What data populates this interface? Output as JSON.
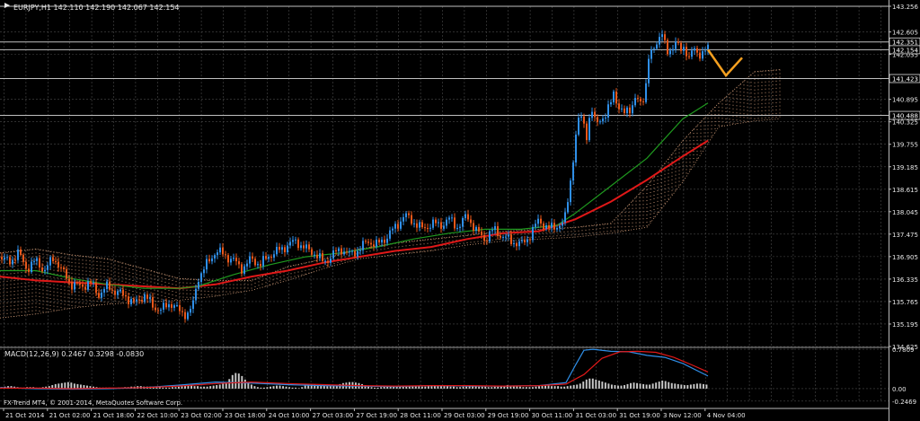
{
  "window": {
    "symbol_info": "EURJPY,H1  142.110 142.190 142.067 142.154"
  },
  "macd_info": "MACD(12,26,9) 0.2467 0.3298 -0.0830",
  "copyright": "FX-Trend MT4, © 2001-2014, MetaQuotes Software Corp.",
  "colors": {
    "background": "#000000",
    "grid": "#4a4a4a",
    "bull": "#2f8fe8",
    "bear": "#e8571a",
    "ma_fast": "#1f9a1f",
    "ma_slow": "#e01818",
    "cloud": "#d9a27d",
    "forecast": "#f5a020",
    "macd_hist": "#c8c8c8",
    "macd_line": "#2f8fe8",
    "signal_line": "#e01818",
    "hline": "#c0c0c0"
  },
  "chart_data": [
    {
      "type": "candlestick",
      "ylim": [
        134.625,
        143.256
      ],
      "y_ticks": [
        143.256,
        142.605,
        142.035,
        141.423,
        140.895,
        140.325,
        139.755,
        139.185,
        138.615,
        138.045,
        137.475,
        136.905,
        136.335,
        135.765,
        135.195,
        134.625
      ],
      "price_labels": [
        "142.351",
        "142.154",
        "141.423",
        "140.488"
      ],
      "x_labels": [
        "21 Oct 2014",
        "21 Oct 02:00",
        "21 Oct 18:00",
        "22 Oct 10:00",
        "23 Oct 02:00",
        "23 Oct 18:00",
        "24 Oct 10:00",
        "27 Oct 03:00",
        "27 Oct 19:00",
        "28 Oct 11:00",
        "29 Oct 03:00",
        "29 Oct 19:00",
        "30 Oct 11:00",
        "31 Oct 03:00",
        "31 Oct 19:00",
        "3 Nov 12:00",
        "4 Nov 04:00"
      ],
      "horizontal_lines": [
        143.256,
        142.351,
        142.154,
        141.423,
        140.488
      ],
      "close_path": [
        [
          0,
          136.9
        ],
        [
          10,
          136.75
        ],
        [
          20,
          137.0
        ],
        [
          30,
          136.6
        ],
        [
          40,
          136.8
        ],
        [
          50,
          136.55
        ],
        [
          60,
          136.9
        ],
        [
          70,
          136.5
        ],
        [
          80,
          136.2
        ],
        [
          90,
          136.15
        ],
        [
          100,
          136.25
        ],
        [
          110,
          135.95
        ],
        [
          120,
          136.15
        ],
        [
          130,
          136.0
        ],
        [
          140,
          135.9
        ],
        [
          150,
          135.7
        ],
        [
          160,
          135.95
        ],
        [
          170,
          135.65
        ],
        [
          180,
          135.55
        ],
        [
          190,
          135.75
        ],
        [
          200,
          135.5
        ],
        [
          210,
          135.45
        ],
        [
          215,
          135.7
        ],
        [
          220,
          136.35
        ],
        [
          230,
          136.7
        ],
        [
          240,
          137.05
        ],
        [
          250,
          136.95
        ],
        [
          260,
          136.8
        ],
        [
          270,
          136.6
        ],
        [
          280,
          136.85
        ],
        [
          290,
          136.7
        ],
        [
          300,
          136.95
        ],
        [
          310,
          137.05
        ],
        [
          320,
          137.2
        ],
        [
          330,
          137.3
        ],
        [
          340,
          137.1
        ],
        [
          350,
          137.0
        ],
        [
          360,
          136.75
        ],
        [
          370,
          136.95
        ],
        [
          380,
          137.1
        ],
        [
          390,
          136.95
        ],
        [
          400,
          137.1
        ],
        [
          410,
          137.3
        ],
        [
          420,
          137.2
        ],
        [
          430,
          137.4
        ],
        [
          440,
          137.65
        ],
        [
          450,
          137.95
        ],
        [
          460,
          137.8
        ],
        [
          470,
          137.6
        ],
        [
          480,
          137.75
        ],
        [
          490,
          137.7
        ],
        [
          500,
          137.85
        ],
        [
          510,
          137.65
        ],
        [
          520,
          137.95
        ],
        [
          530,
          137.55
        ],
        [
          540,
          137.35
        ],
        [
          550,
          137.6
        ],
        [
          560,
          137.4
        ],
        [
          570,
          137.3
        ],
        [
          580,
          137.2
        ],
        [
          590,
          137.45
        ],
        [
          600,
          137.85
        ],
        [
          610,
          137.6
        ],
        [
          620,
          137.7
        ],
        [
          628,
          137.75
        ],
        [
          633,
          138.5
        ],
        [
          638,
          139.4
        ],
        [
          643,
          140.3
        ],
        [
          648,
          140.5
        ],
        [
          653,
          140.0
        ],
        [
          658,
          140.6
        ],
        [
          663,
          140.3
        ],
        [
          668,
          140.45
        ],
        [
          673,
          140.35
        ],
        [
          678,
          140.7
        ],
        [
          683,
          141.15
        ],
        [
          688,
          140.65
        ],
        [
          693,
          140.5
        ],
        [
          698,
          140.7
        ],
        [
          703,
          140.65
        ],
        [
          708,
          140.9
        ],
        [
          713,
          140.85
        ],
        [
          718,
          141.05
        ],
        [
          722,
          141.9
        ],
        [
          727,
          142.15
        ],
        [
          732,
          142.45
        ],
        [
          737,
          142.55
        ],
        [
          742,
          142.05
        ],
        [
          747,
          142.2
        ],
        [
          752,
          142.35
        ],
        [
          757,
          142.1
        ],
        [
          762,
          142.25
        ],
        [
          767,
          141.95
        ],
        [
          772,
          142.15
        ],
        [
          777,
          142.05
        ],
        [
          782,
          142.1
        ],
        [
          788,
          142.154
        ]
      ],
      "ma_fast": [
        [
          0,
          136.55
        ],
        [
          40,
          136.55
        ],
        [
          80,
          136.35
        ],
        [
          120,
          136.2
        ],
        [
          160,
          136.1
        ],
        [
          200,
          136.1
        ],
        [
          220,
          136.15
        ],
        [
          260,
          136.45
        ],
        [
          300,
          136.7
        ],
        [
          340,
          136.9
        ],
        [
          380,
          137.0
        ],
        [
          420,
          137.15
        ],
        [
          460,
          137.35
        ],
        [
          500,
          137.5
        ],
        [
          540,
          137.6
        ],
        [
          580,
          137.6
        ],
        [
          620,
          137.7
        ],
        [
          640,
          138.0
        ],
        [
          680,
          138.7
        ],
        [
          720,
          139.4
        ],
        [
          760,
          140.4
        ],
        [
          788,
          140.8
        ]
      ],
      "ma_slow": [
        [
          0,
          136.4
        ],
        [
          40,
          136.3
        ],
        [
          80,
          136.25
        ],
        [
          120,
          136.2
        ],
        [
          160,
          136.15
        ],
        [
          200,
          136.1
        ],
        [
          240,
          136.2
        ],
        [
          280,
          136.4
        ],
        [
          320,
          136.55
        ],
        [
          360,
          136.75
        ],
        [
          400,
          136.9
        ],
        [
          440,
          137.05
        ],
        [
          480,
          137.15
        ],
        [
          520,
          137.35
        ],
        [
          560,
          137.5
        ],
        [
          600,
          137.55
        ],
        [
          640,
          137.85
        ],
        [
          680,
          138.3
        ],
        [
          720,
          138.85
        ],
        [
          760,
          139.45
        ],
        [
          788,
          139.85
        ]
      ],
      "cloud_upper": [
        [
          0,
          137.0
        ],
        [
          40,
          137.1
        ],
        [
          80,
          136.95
        ],
        [
          120,
          136.85
        ],
        [
          160,
          136.6
        ],
        [
          200,
          136.35
        ],
        [
          240,
          136.3
        ],
        [
          280,
          136.3
        ],
        [
          320,
          136.65
        ],
        [
          360,
          136.85
        ],
        [
          400,
          137.1
        ],
        [
          440,
          137.25
        ],
        [
          480,
          137.35
        ],
        [
          520,
          137.45
        ],
        [
          560,
          137.55
        ],
        [
          600,
          137.6
        ],
        [
          640,
          137.65
        ],
        [
          680,
          137.75
        ],
        [
          720,
          138.7
        ],
        [
          760,
          139.85
        ],
        [
          800,
          140.8
        ],
        [
          840,
          141.6
        ],
        [
          868,
          141.65
        ]
      ],
      "cloud_lower": [
        [
          0,
          135.35
        ],
        [
          40,
          135.45
        ],
        [
          80,
          135.6
        ],
        [
          120,
          135.7
        ],
        [
          160,
          135.75
        ],
        [
          200,
          135.8
        ],
        [
          240,
          135.9
        ],
        [
          280,
          136.05
        ],
        [
          320,
          136.3
        ],
        [
          360,
          136.6
        ],
        [
          400,
          136.85
        ],
        [
          440,
          136.95
        ],
        [
          480,
          137.05
        ],
        [
          520,
          137.2
        ],
        [
          560,
          137.3
        ],
        [
          600,
          137.35
        ],
        [
          640,
          137.4
        ],
        [
          680,
          137.5
        ],
        [
          720,
          137.65
        ],
        [
          760,
          138.8
        ],
        [
          800,
          140.2
        ],
        [
          840,
          140.35
        ],
        [
          868,
          140.4
        ]
      ],
      "forecast_path": [
        [
          788,
          142.154
        ],
        [
          808,
          141.5
        ],
        [
          826,
          141.95
        ]
      ]
    },
    {
      "type": "macd",
      "title": "MACD(12,26,9) 0.2467 0.3298 -0.0830",
      "ylim": [
        -0.25,
        0.8
      ],
      "y_ticks": [
        0.7809,
        0.0,
        -0.2469
      ],
      "histogram": [
        0.03,
        0.04,
        0.05,
        0.05,
        0.04,
        0.03,
        0.02,
        0.02,
        0.03,
        0.03,
        0.03,
        0.02,
        0.02,
        0.03,
        0.04,
        0.05,
        0.07,
        0.09,
        0.1,
        0.11,
        0.12,
        0.13,
        0.12,
        0.1,
        0.09,
        0.08,
        0.07,
        0.06,
        0.05,
        0.04,
        0.03,
        0.02,
        0.02,
        0.02,
        0.02,
        0.01,
        0.01,
        0.02,
        0.02,
        0.03,
        0.03,
        0.04,
        0.04,
        0.05,
        0.05,
        0.04,
        0.04,
        0.04,
        0.04,
        0.03,
        0.03,
        0.02,
        0.02,
        0.02,
        0.03,
        0.03,
        0.04,
        0.05,
        0.06,
        0.06,
        0.06,
        0.05,
        0.05,
        0.04,
        0.04,
        0.04,
        0.05,
        0.06,
        0.07,
        0.08,
        0.1,
        0.13,
        0.19,
        0.27,
        0.31,
        0.3,
        0.25,
        0.18,
        0.12,
        0.08,
        0.05,
        0.03,
        0.02,
        0.02,
        0.03,
        0.04,
        0.05,
        0.06,
        0.06,
        0.05,
        0.04,
        0.03,
        0.02,
        0.02,
        0.01,
        0.03,
        0.06,
        0.08,
        0.09,
        0.08,
        0.07,
        0.06,
        0.06,
        0.05,
        0.05,
        0.06,
        0.07,
        0.09,
        0.11,
        0.12,
        0.13,
        0.13,
        0.12,
        0.11,
        0.09,
        0.07,
        0.05,
        0.03,
        0.02,
        0.02,
        0.03,
        0.04,
        0.05,
        0.06,
        0.06,
        0.05,
        0.05,
        0.05,
        0.06,
        0.06,
        0.05,
        0.05,
        0.05,
        0.04,
        0.04,
        0.05,
        0.05,
        0.06,
        0.06,
        0.06,
        0.05,
        0.05,
        0.04,
        0.04,
        0.03,
        0.03,
        0.04,
        0.04,
        0.05,
        0.05,
        0.05,
        0.04,
        0.04,
        0.04,
        0.03,
        0.03,
        0.04,
        0.04,
        0.05,
        0.06,
        0.07,
        0.06,
        0.06,
        0.05,
        0.04,
        0.03,
        0.03,
        0.03,
        0.03,
        0.04,
        0.05,
        0.06,
        0.06,
        0.06,
        0.05,
        0.05,
        0.05,
        0.04,
        0.04,
        0.05,
        0.06,
        0.07,
        0.08,
        0.1,
        0.14,
        0.18,
        0.2,
        0.2,
        0.18,
        0.16,
        0.14,
        0.12,
        0.1,
        0.08,
        0.07,
        0.06,
        0.06,
        0.07,
        0.09,
        0.11,
        0.12,
        0.11,
        0.1,
        0.09,
        0.08,
        0.08,
        0.1,
        0.12,
        0.14,
        0.16,
        0.15,
        0.13,
        0.11,
        0.1,
        0.09,
        0.08,
        0.07,
        0.07,
        0.08,
        0.09,
        0.1,
        0.1,
        0.09,
        0.08
      ],
      "macd_line": [
        [
          0,
          0.02
        ],
        [
          40,
          0.0
        ],
        [
          80,
          -0.01
        ],
        [
          120,
          0.0
        ],
        [
          160,
          0.02
        ],
        [
          200,
          0.07
        ],
        [
          240,
          0.13
        ],
        [
          280,
          0.11
        ],
        [
          320,
          0.08
        ],
        [
          360,
          0.06
        ],
        [
          400,
          0.05
        ],
        [
          440,
          0.04
        ],
        [
          480,
          0.06
        ],
        [
          520,
          0.05
        ],
        [
          560,
          0.05
        ],
        [
          600,
          0.06
        ],
        [
          630,
          0.12
        ],
        [
          640,
          0.45
        ],
        [
          650,
          0.76
        ],
        [
          660,
          0.78
        ],
        [
          680,
          0.74
        ],
        [
          700,
          0.73
        ],
        [
          720,
          0.66
        ],
        [
          740,
          0.62
        ],
        [
          760,
          0.5
        ],
        [
          788,
          0.25
        ]
      ],
      "signal_line": [
        [
          0,
          0.01
        ],
        [
          40,
          0.01
        ],
        [
          80,
          0.0
        ],
        [
          120,
          0.01
        ],
        [
          160,
          0.02
        ],
        [
          200,
          0.05
        ],
        [
          240,
          0.1
        ],
        [
          280,
          0.13
        ],
        [
          320,
          0.1
        ],
        [
          360,
          0.08
        ],
        [
          400,
          0.06
        ],
        [
          440,
          0.05
        ],
        [
          480,
          0.06
        ],
        [
          520,
          0.06
        ],
        [
          560,
          0.05
        ],
        [
          600,
          0.06
        ],
        [
          630,
          0.09
        ],
        [
          650,
          0.28
        ],
        [
          670,
          0.6
        ],
        [
          690,
          0.73
        ],
        [
          710,
          0.74
        ],
        [
          730,
          0.72
        ],
        [
          750,
          0.62
        ],
        [
          770,
          0.47
        ],
        [
          788,
          0.33
        ]
      ]
    }
  ]
}
